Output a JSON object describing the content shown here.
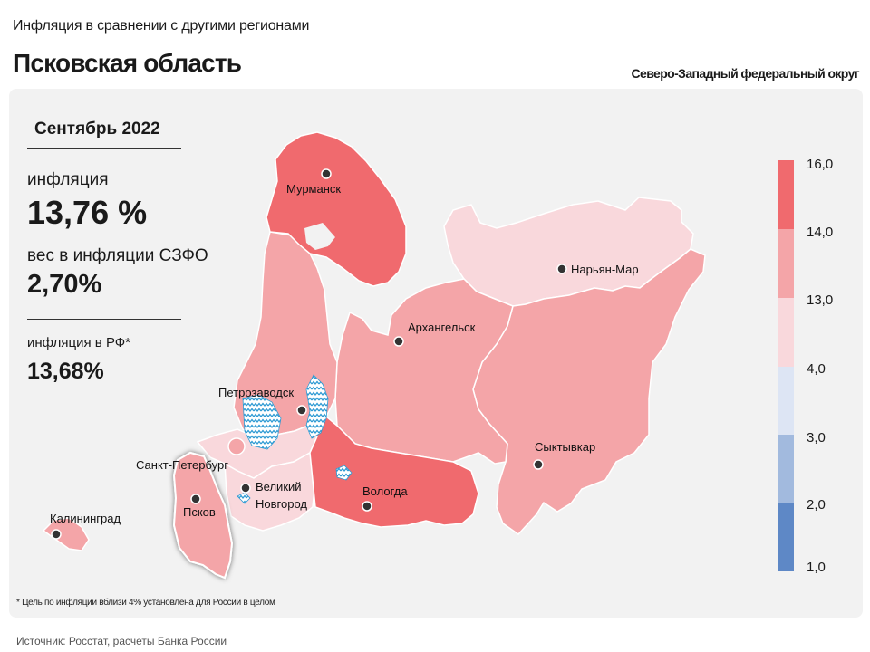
{
  "header": {
    "subtitle": "Инфляция в сравнении с другими регионами",
    "region": "Псковская область",
    "district": "Северо-Западный федеральный округ"
  },
  "stats": {
    "period": "Сентябрь 2022",
    "inflation_label": "инфляция",
    "inflation_value": "13,76 %",
    "weight_label": "вес в инфляции  СЗФО",
    "weight_value": "2,70%",
    "rf_label": "инфляция  в РФ*",
    "rf_value": "13,68%"
  },
  "legend": {
    "ticks": [
      "16,0",
      "14,0",
      "13,0",
      "4,0",
      "3,0",
      "2,0",
      "1,0"
    ],
    "colors": [
      "#f06a6e",
      "#f4a5a8",
      "#f9d8dc",
      "#dde5f4",
      "#a2bade",
      "#5e88c6"
    ]
  },
  "map": {
    "cities": [
      {
        "name": "Мурманск"
      },
      {
        "name": "Нарьян-Мар"
      },
      {
        "name": "Архангельск"
      },
      {
        "name": "Петрозаводск"
      },
      {
        "name": "Санкт-Петербург"
      },
      {
        "name": "Великий"
      },
      {
        "name": "Новгород"
      },
      {
        "name": "Псков"
      },
      {
        "name": "Вологда"
      },
      {
        "name": "Сыктывкар"
      },
      {
        "name": "Калининград"
      }
    ],
    "colors": {
      "high": "#f06a6e",
      "mid": "#f4a5a8",
      "low": "#f9d8dc",
      "water": "#3aa5d8"
    }
  },
  "footnote": "* Цель по инфляции вблизи 4% установлена для России в целом",
  "source": "Источник: Росстат, расчеты Банка России"
}
